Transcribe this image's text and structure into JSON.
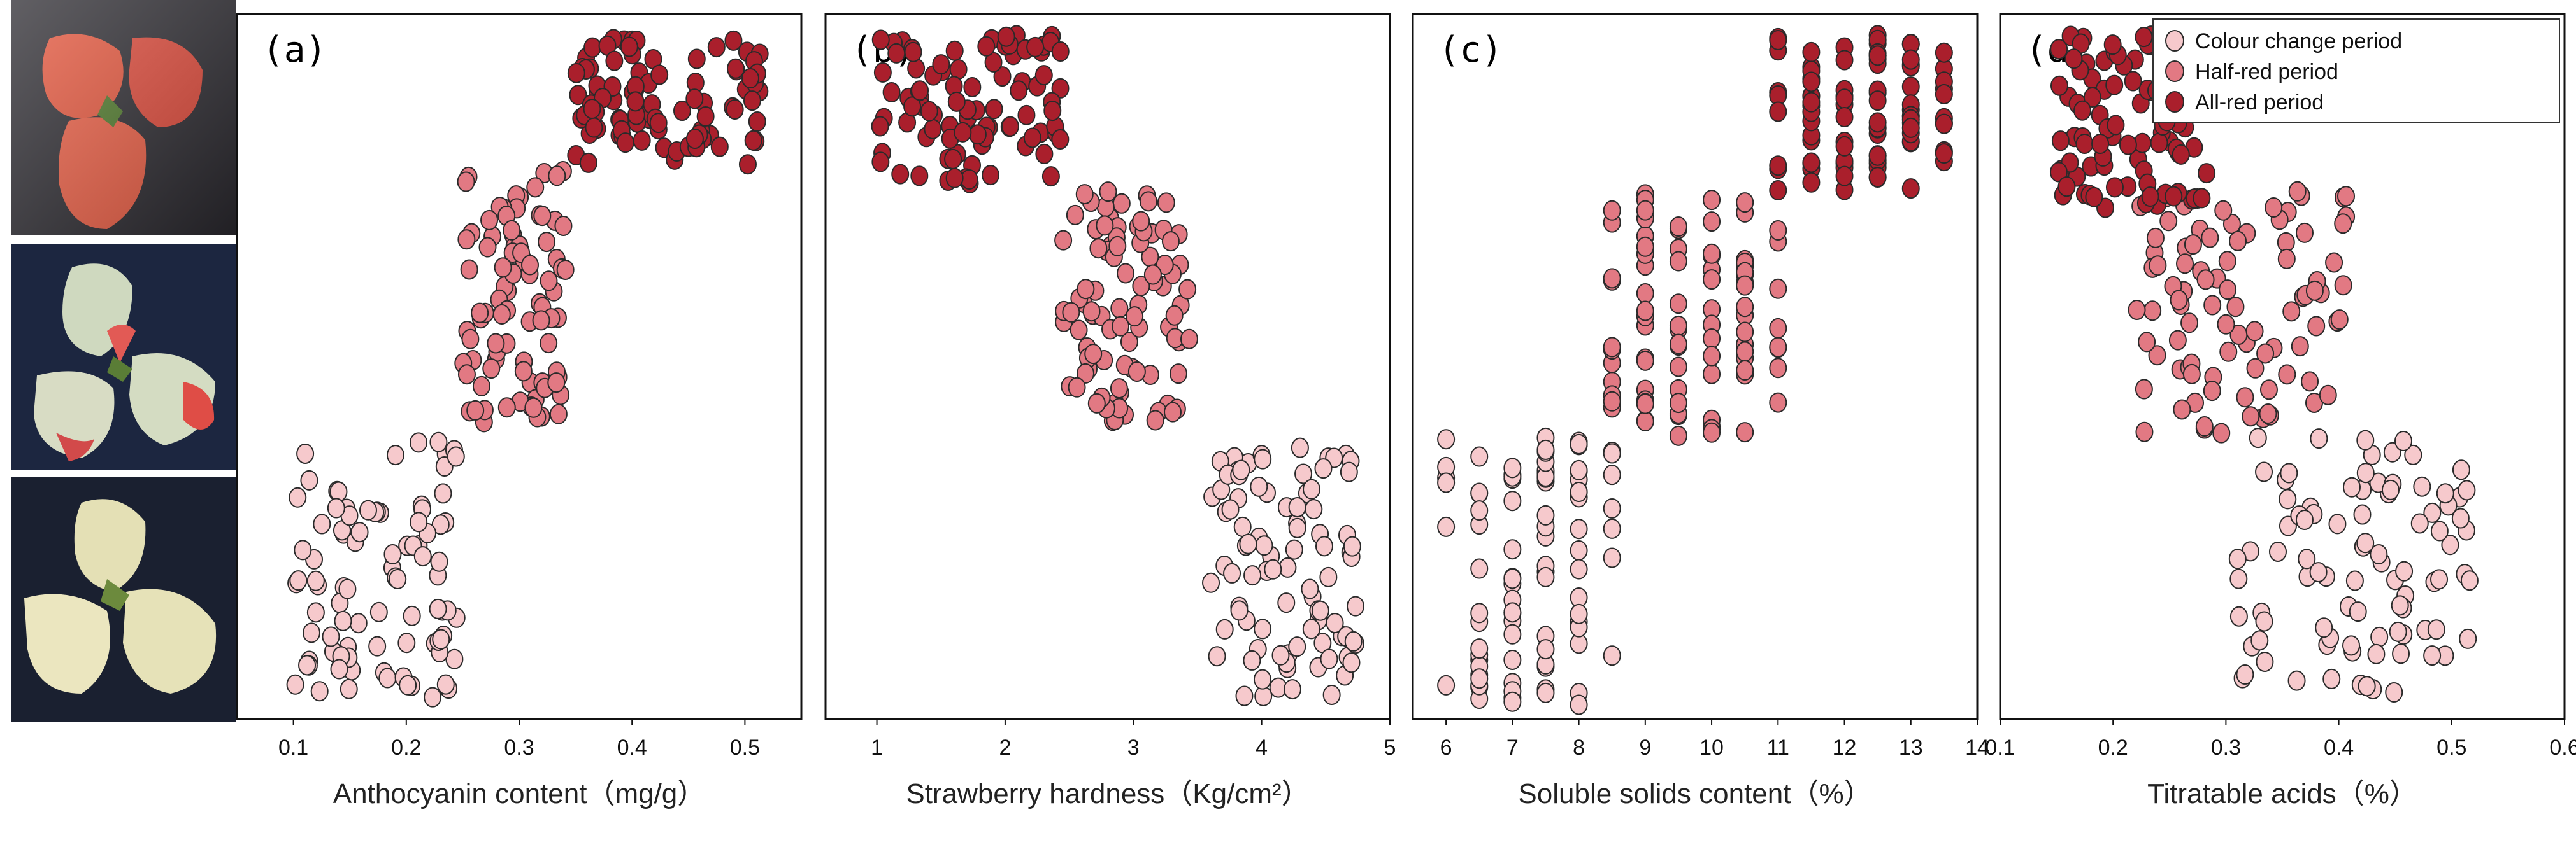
{
  "colors": {
    "colour_change": "#f6c9cc",
    "half_red": "#e27983",
    "all_red": "#aa1f2c",
    "stroke": "#2a2a2a"
  },
  "photos": [
    {
      "stage": "All-red period",
      "icon": "ripe-strawberry-photo"
    },
    {
      "stage": "Half-red period",
      "icon": "half-red-strawberry-photo"
    },
    {
      "stage": "Colour change period",
      "icon": "white-strawberry-photo"
    }
  ],
  "chart_data": [
    {
      "type": "scatter",
      "panel_label": "(a)",
      "xlabel": "Anthocyanin content（mg/g）",
      "xlim": [
        0.05,
        0.55
      ],
      "ylim": [
        0,
        1
      ],
      "xticks": [
        0.1,
        0.2,
        0.3,
        0.4,
        0.5
      ],
      "tick_labels": [
        "0.1",
        "0.2",
        "0.3",
        "0.4",
        "0.5"
      ],
      "series": [
        {
          "name": "Colour change period",
          "x_range": [
            0.1,
            0.245
          ],
          "y_range": [
            0.03,
            0.4
          ]
        },
        {
          "name": "Half-red period",
          "x_range": [
            0.25,
            0.345
          ],
          "y_range": [
            0.42,
            0.78
          ]
        },
        {
          "name": "All-red period",
          "x_range": [
            0.35,
            0.515
          ],
          "y_range": [
            0.78,
            0.97
          ]
        }
      ]
    },
    {
      "type": "scatter",
      "panel_label": "(b)",
      "xlabel": "Strawberry hardness（Kg/cm²）",
      "xlim": [
        0.6,
        5.0
      ],
      "ylim": [
        0,
        1
      ],
      "xticks": [
        1,
        2,
        3,
        4,
        5
      ],
      "tick_labels": [
        "1",
        "2",
        "3",
        "4",
        "5"
      ],
      "series": [
        {
          "name": "Colour change period",
          "x_range": [
            3.6,
            4.75
          ],
          "y_range": [
            0.03,
            0.4
          ]
        },
        {
          "name": "Half-red period",
          "x_range": [
            2.45,
            3.45
          ],
          "y_range": [
            0.42,
            0.75
          ]
        },
        {
          "name": "All-red period",
          "x_range": [
            1.0,
            2.45
          ],
          "y_range": [
            0.76,
            0.97
          ]
        }
      ]
    },
    {
      "type": "scatter",
      "panel_label": "(c)",
      "xlabel": "Soluble solids content（%）",
      "xlim": [
        5.5,
        14.0
      ],
      "ylim": [
        0,
        1
      ],
      "xticks": [
        6,
        7,
        8,
        9,
        10,
        11,
        12,
        13,
        14
      ],
      "tick_labels": [
        "6",
        "7",
        "8",
        "9",
        "10",
        "11",
        "12",
        "13",
        "14"
      ],
      "x_step": 0.5,
      "series": [
        {
          "name": "Colour change period",
          "x_range": [
            6.0,
            8.5
          ],
          "y_range": [
            0.02,
            0.4
          ]
        },
        {
          "name": "Half-red period",
          "x_range": [
            8.5,
            11.0
          ],
          "y_range": [
            0.4,
            0.75
          ]
        },
        {
          "name": "All-red period",
          "x_range": [
            11.0,
            13.5
          ],
          "y_range": [
            0.75,
            0.97
          ]
        }
      ]
    },
    {
      "type": "scatter",
      "panel_label": "(d)",
      "xlabel": "Titratable acids（%）",
      "xlim": [
        0.1,
        0.6
      ],
      "ylim": [
        0,
        1
      ],
      "xticks": [
        0.1,
        0.2,
        0.3,
        0.4,
        0.5,
        0.6
      ],
      "tick_labels": [
        "0.1",
        "0.2",
        "0.3",
        "0.4",
        "0.5",
        "0.6"
      ],
      "series": [
        {
          "name": "Colour change period",
          "x_range": [
            0.31,
            0.52
          ],
          "y_range": [
            0.03,
            0.4
          ]
        },
        {
          "name": "Half-red period",
          "x_range": [
            0.22,
            0.41
          ],
          "y_range": [
            0.4,
            0.75
          ]
        },
        {
          "name": "All-red period",
          "x_range": [
            0.15,
            0.29
          ],
          "y_range": [
            0.72,
            0.97
          ]
        }
      ]
    }
  ],
  "legend": {
    "items": [
      "Colour change period",
      "Half-red period",
      "All-red period"
    ]
  }
}
